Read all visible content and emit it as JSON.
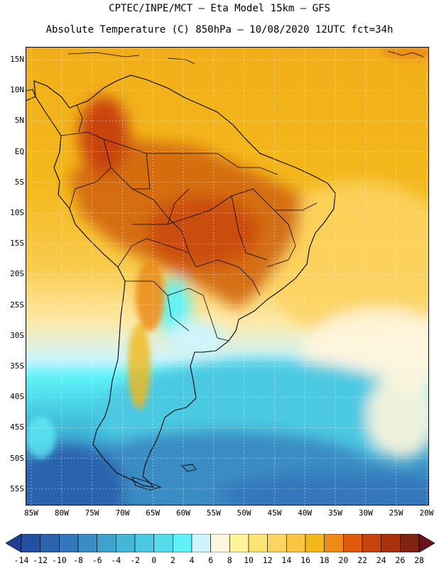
{
  "title": {
    "line1": "CPTEC/INPE/MCT –  Eta Model 15km – GFS",
    "line2": "Absolute Temperature (C) 850hPa – 10/08/2020 12UTC fct=34h"
  },
  "map": {
    "lat_labels": [
      "15N",
      "10N",
      "5N",
      "EQ",
      "5S",
      "10S",
      "15S",
      "20S",
      "25S",
      "30S",
      "35S",
      "40S",
      "45S",
      "50S",
      "55S"
    ],
    "lon_labels": [
      "85W",
      "80W",
      "75W",
      "70W",
      "65W",
      "60W",
      "55W",
      "50W",
      "45W",
      "40W",
      "35W",
      "30W",
      "25W",
      "20W"
    ]
  },
  "colorbar": {
    "labels": [
      "-14",
      "-12",
      "-10",
      "-8",
      "-6",
      "-4",
      "-2",
      "0",
      "2",
      "4",
      "6",
      "8",
      "10",
      "12",
      "14",
      "16",
      "18",
      "20",
      "22",
      "24",
      "26",
      "28"
    ],
    "colors": [
      "#1e3f91",
      "#24519f",
      "#2b63ad",
      "#3477bb",
      "#3a8cc4",
      "#3ea2cc",
      "#44b6d6",
      "#4bc9e2",
      "#55dbeb",
      "#5ff2f8",
      "#cdf5fb",
      "#fff6dd",
      "#fef59a",
      "#fee472",
      "#fdd460",
      "#f9c543",
      "#f3b81b",
      "#eb8b19",
      "#df5a0b",
      "#c84209",
      "#a8310b",
      "#7f2312",
      "#6a101e"
    ]
  },
  "palette": {
    "ocean_warm": "#f2ae1a",
    "land_hot": "#d2650e",
    "cold_water": "#44c8e0",
    "cold_deep": "#2f78ba",
    "coast": "#000000",
    "grid": "#ffffff"
  }
}
